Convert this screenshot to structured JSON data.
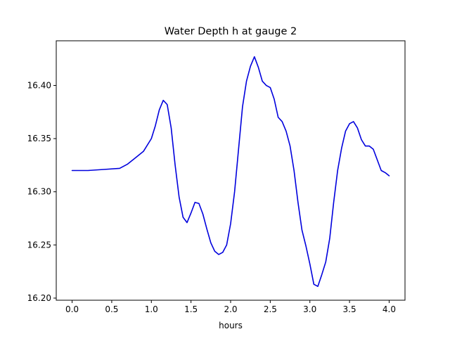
{
  "chart_data": {
    "type": "line",
    "title": "Water Depth h at gauge 2",
    "xlabel": "hours",
    "ylabel": "",
    "xlim": [
      -0.2,
      4.2
    ],
    "ylim": [
      16.198,
      16.442
    ],
    "x_ticks": [
      0.0,
      0.5,
      1.0,
      1.5,
      2.0,
      2.5,
      3.0,
      3.5,
      4.0
    ],
    "x_tick_labels": [
      "0.0",
      "0.5",
      "1.0",
      "1.5",
      "2.0",
      "2.5",
      "3.0",
      "3.5",
      "4.0"
    ],
    "y_ticks": [
      16.2,
      16.25,
      16.3,
      16.35,
      16.4
    ],
    "y_tick_labels": [
      "16.20",
      "16.25",
      "16.30",
      "16.35",
      "16.40"
    ],
    "grid": false,
    "legend": "none",
    "series": [
      {
        "color": "#0000dd",
        "x": [
          0.0,
          0.2,
          0.4,
          0.6,
          0.7,
          0.8,
          0.9,
          1.0,
          1.05,
          1.1,
          1.15,
          1.2,
          1.25,
          1.3,
          1.35,
          1.4,
          1.45,
          1.5,
          1.55,
          1.6,
          1.65,
          1.7,
          1.75,
          1.8,
          1.85,
          1.9,
          1.95,
          2.0,
          2.05,
          2.1,
          2.15,
          2.2,
          2.25,
          2.3,
          2.35,
          2.4,
          2.45,
          2.5,
          2.55,
          2.6,
          2.65,
          2.7,
          2.75,
          2.8,
          2.85,
          2.9,
          2.95,
          3.0,
          3.05,
          3.1,
          3.15,
          3.2,
          3.25,
          3.3,
          3.35,
          3.4,
          3.45,
          3.5,
          3.55,
          3.6,
          3.65,
          3.7,
          3.75,
          3.8,
          3.85,
          3.9,
          3.95,
          4.0
        ],
        "y": [
          16.32,
          16.32,
          16.321,
          16.322,
          16.326,
          16.332,
          16.338,
          16.35,
          16.362,
          16.377,
          16.386,
          16.382,
          16.36,
          16.325,
          16.295,
          16.276,
          16.271,
          16.28,
          16.29,
          16.289,
          16.279,
          16.265,
          16.252,
          16.244,
          16.241,
          16.243,
          16.25,
          16.27,
          16.3,
          16.34,
          16.38,
          16.404,
          16.418,
          16.427,
          16.417,
          16.404,
          16.4,
          16.398,
          16.387,
          16.37,
          16.366,
          16.357,
          16.343,
          16.32,
          16.29,
          16.264,
          16.249,
          16.232,
          16.213,
          16.211,
          16.222,
          16.234,
          16.256,
          16.29,
          16.32,
          16.341,
          16.357,
          16.364,
          16.366,
          16.36,
          16.349,
          16.343,
          16.343,
          16.34,
          16.33,
          16.32,
          16.318,
          16.315
        ]
      }
    ]
  }
}
